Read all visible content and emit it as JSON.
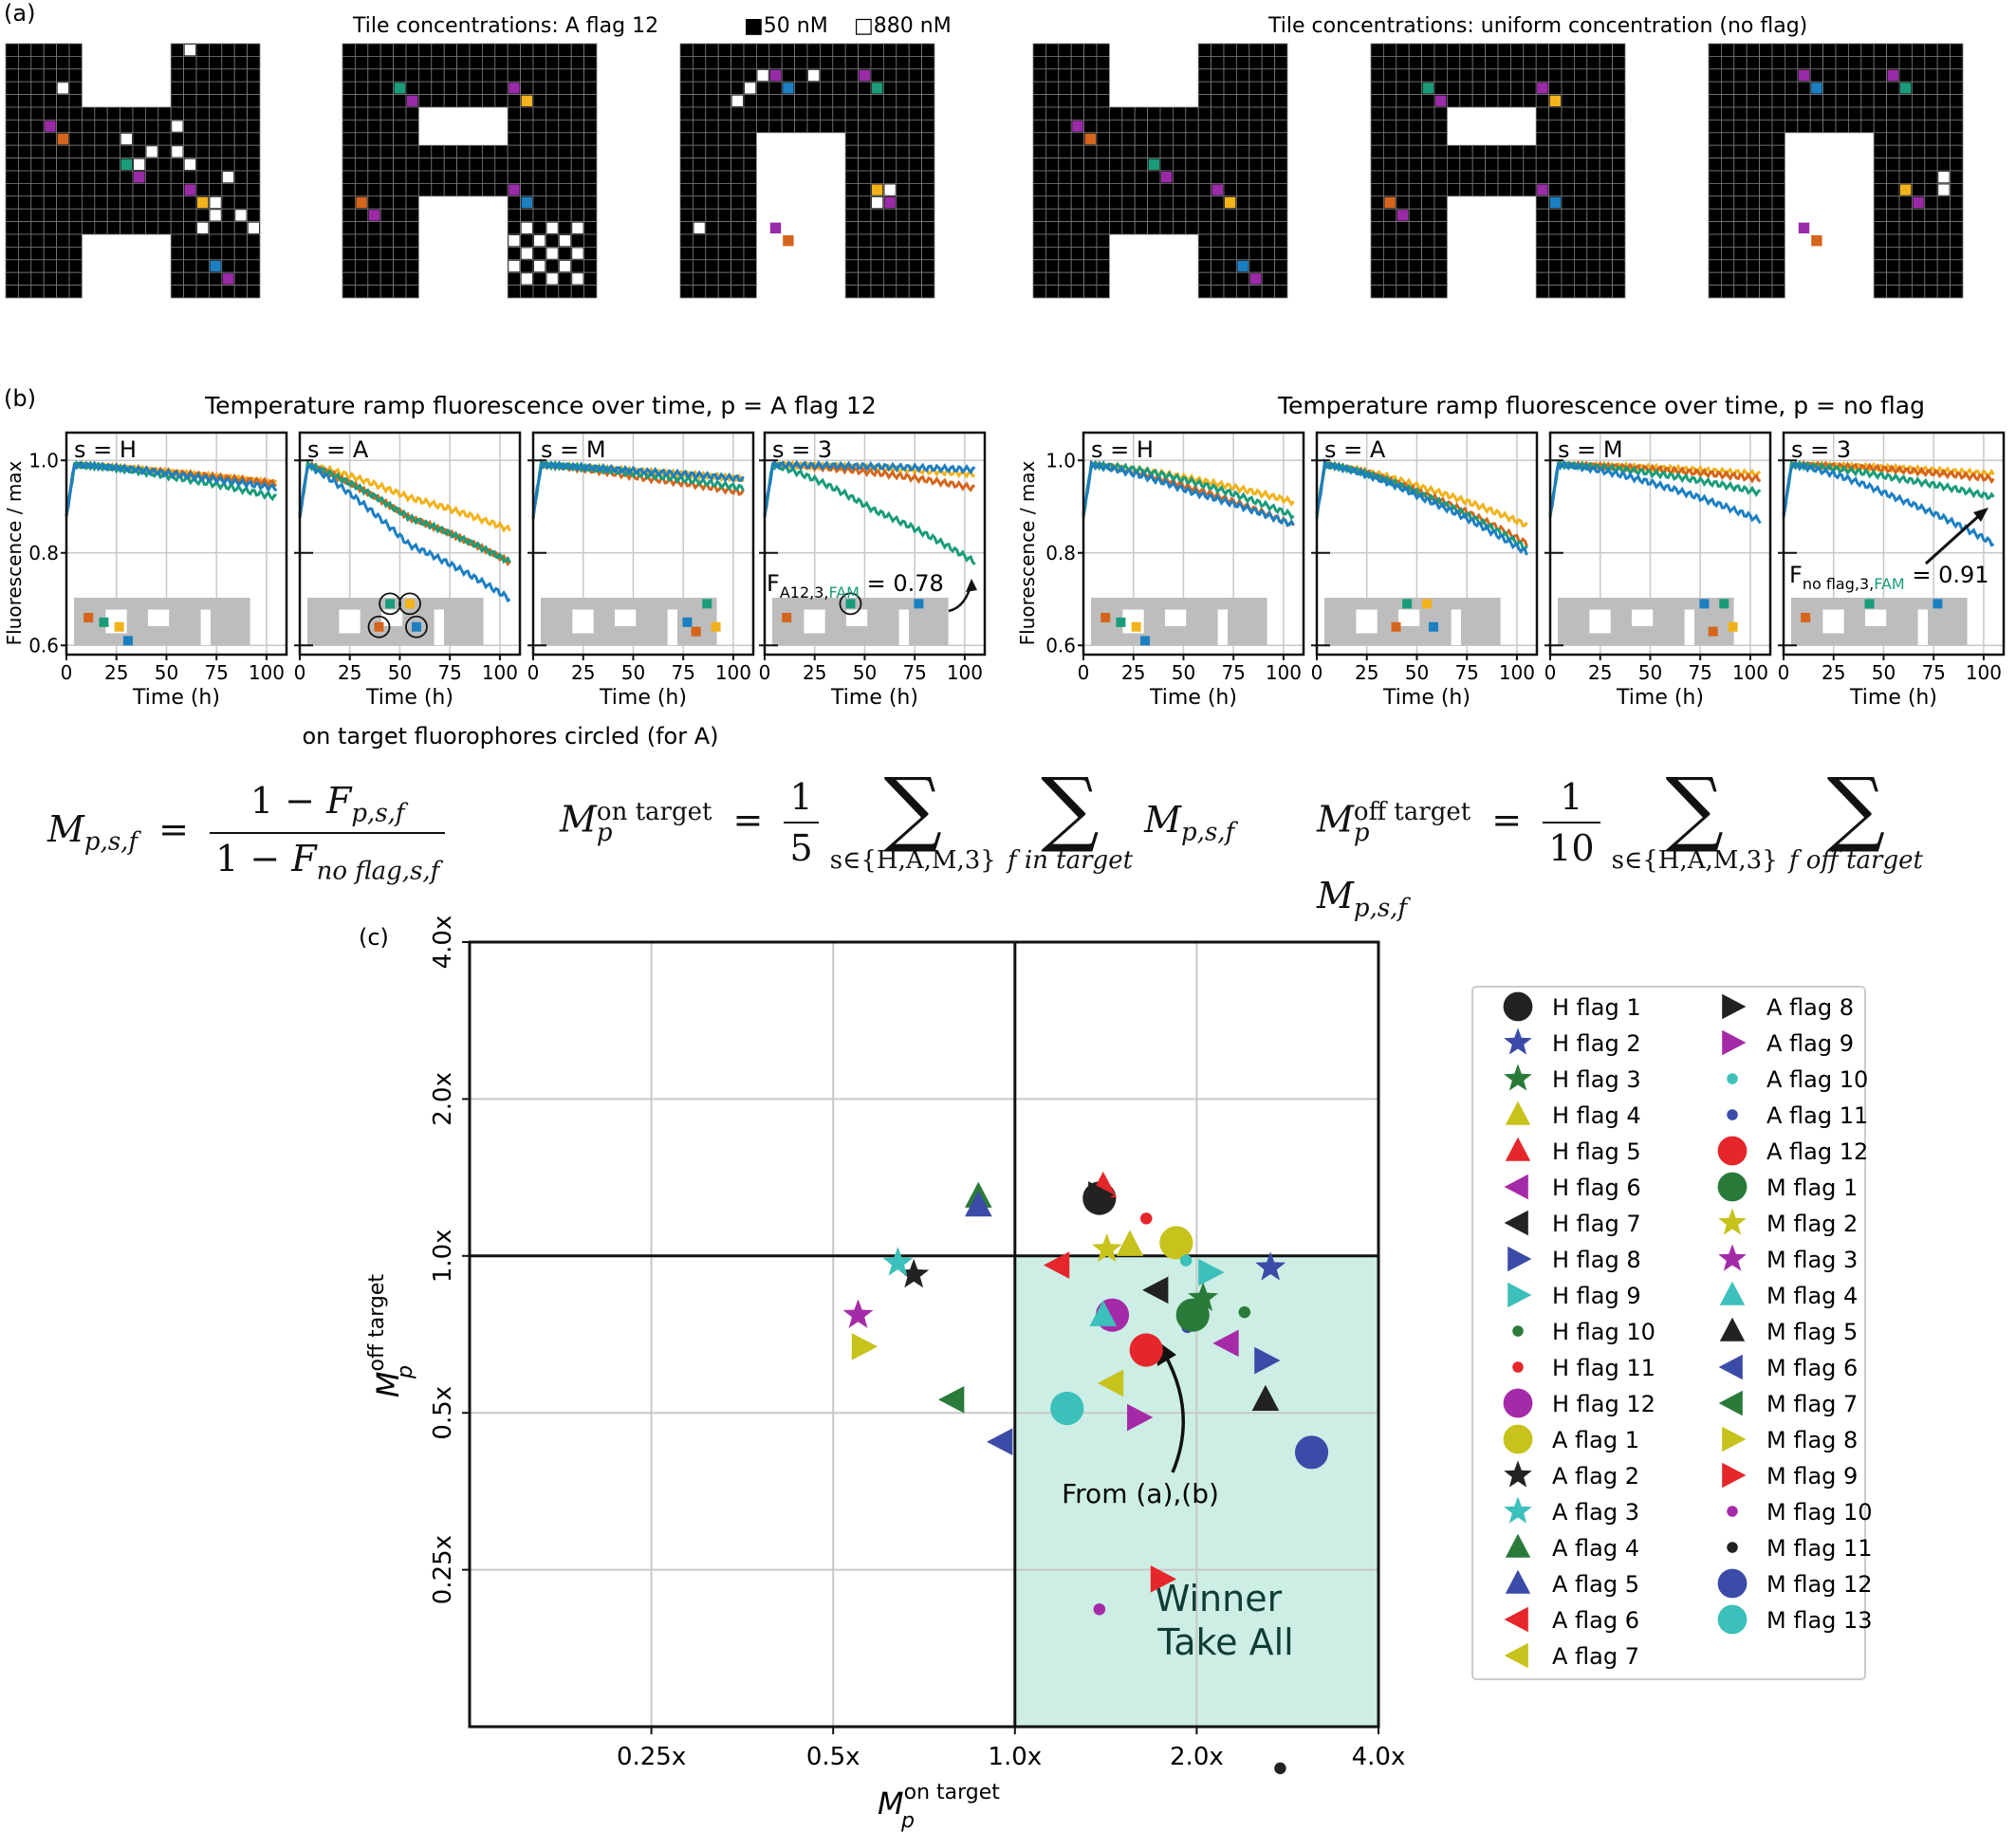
{
  "panel_labels": {
    "a": "(a)",
    "b": "(b)",
    "c": "(c)"
  },
  "panel_a": {
    "left_title": "Tile concentrations: A flag 12",
    "legend_50": "■50 nM",
    "legend_880": "□880 nM",
    "right_title": "Tile concentrations: uniform concentration (no flag)",
    "colors": {
      "orange": "#d5651c",
      "green": "#1a9c7a",
      "purple": "#9a2aa8",
      "yellow": "#f2b21c",
      "blue": "#1c7fc2",
      "white": "#ffffff",
      "black": "#000000",
      "grid": "#7a7a7a"
    }
  },
  "panel_b": {
    "left_title": "Temperature ramp fluorescence over time, p = A flag 12",
    "right_title": "Temperature ramp fluorescence over time, p = no flag",
    "ylabel": "Fluorescence / max",
    "xlabel": "Time (h)",
    "caption": "on target fluorophores circled (for A)",
    "subplot_labels": [
      "s = H",
      "s = A",
      "s = M",
      "s = 3"
    ],
    "xticks": [
      "0",
      "25",
      "50",
      "75",
      "100"
    ],
    "yticks": [
      "0.6",
      "0.8",
      "1.0"
    ],
    "annot_left_main": "F",
    "annot_left_sub1": "A12,3,",
    "annot_left_sub2": "FAM",
    "annot_left_val": " = 0.78",
    "annot_right_main": "F",
    "annot_right_sub1": "no flag,3,",
    "annot_right_sub2": "FAM",
    "annot_right_val": " = 0.91",
    "series_colors": [
      "#f2b21c",
      "#d5651c",
      "#1a9c7a",
      "#1c7fc2"
    ]
  },
  "equations": {
    "m_lhs": "M",
    "m_lhs_sub": "p,s,f",
    "one_minus": "1 − ",
    "F": "F",
    "f_sub_num": "p,s,f",
    "f_sub_den": "no flag,s,f",
    "on_sup": "on target",
    "off_sup": "off target",
    "p_sub": "p",
    "one": "1",
    "five": "5",
    "ten": "10",
    "sum_sub1": "s∈{H,A,M,3}",
    "sum_sub2_on": "f in target",
    "sum_sub2_off": "f off target",
    "eq": "=",
    "msf": "M",
    "msf_sub": "p,s,f"
  },
  "chart_data": {
    "type": "scatter",
    "xlabel_main": "M",
    "xlabel_sup": "on target",
    "xlabel_sub": "p",
    "ylabel_main": "M",
    "ylabel_sup": "off target",
    "ylabel_sub": "p",
    "xscale": "log2",
    "yscale": "log2",
    "xlim": [
      0.125,
      4.0
    ],
    "ylim": [
      0.125,
      4.0
    ],
    "xticks": [
      0.25,
      0.5,
      1.0,
      2.0,
      4.0
    ],
    "xtick_labels": [
      "0.25x",
      "0.5x",
      "1.0x",
      "2.0x",
      "4.0x"
    ],
    "yticks": [
      0.25,
      0.5,
      1.0,
      2.0,
      4.0
    ],
    "ytick_labels": [
      "0.25x",
      "0.5x",
      "1.0x",
      "2.0x",
      "4.0x"
    ],
    "grid": true,
    "region_label_1": "Winner",
    "region_label_2": "Take All",
    "region_color": "#cdeee5",
    "arrow_label": "From (a),(b)",
    "legend_position": "right",
    "series": [
      {
        "name": "H flag 1",
        "marker": "circle",
        "color": "#222222",
        "x": 1.38,
        "y": 1.29
      },
      {
        "name": "H flag 2",
        "marker": "star",
        "color": "#3b4ba8",
        "x": 2.65,
        "y": 0.95
      },
      {
        "name": "H flag 3",
        "marker": "star",
        "color": "#2a7a3a",
        "x": 2.05,
        "y": 0.83
      },
      {
        "name": "H flag 4",
        "marker": "triangle-up",
        "color": "#c7c21c",
        "x": 1.55,
        "y": 1.05
      },
      {
        "name": "H flag 5",
        "marker": "triangle-up",
        "color": "#e5262a",
        "x": 1.4,
        "y": 1.36
      },
      {
        "name": "H flag 6",
        "marker": "triangle-left",
        "color": "#a52aa8",
        "x": 2.25,
        "y": 0.68
      },
      {
        "name": "H flag 7",
        "marker": "triangle-left",
        "color": "#222222",
        "x": 1.72,
        "y": 0.86
      },
      {
        "name": "H flag 8",
        "marker": "triangle-right",
        "color": "#3b4ba8",
        "x": 2.6,
        "y": 0.63
      },
      {
        "name": "H flag 9",
        "marker": "triangle-right",
        "color": "#3cc0bc",
        "x": 2.1,
        "y": 0.93
      },
      {
        "name": "H flag 10",
        "marker": "dot",
        "color": "#2a7a3a",
        "x": 2.4,
        "y": 0.78
      },
      {
        "name": "H flag 11",
        "marker": "dot",
        "color": "#e5262a",
        "x": 1.65,
        "y": 1.18
      },
      {
        "name": "H flag 12",
        "marker": "circle",
        "color": "#a52aa8",
        "x": 1.45,
        "y": 0.77
      },
      {
        "name": "A flag 1",
        "marker": "circle",
        "color": "#c7c21c",
        "x": 1.85,
        "y": 1.06
      },
      {
        "name": "A flag 2",
        "marker": "star",
        "color": "#222222",
        "x": 0.68,
        "y": 0.92
      },
      {
        "name": "A flag 3",
        "marker": "star",
        "color": "#3cc0bc",
        "x": 0.64,
        "y": 0.97
      },
      {
        "name": "A flag 4",
        "marker": "triangle-up",
        "color": "#2a7a3a",
        "x": 0.87,
        "y": 1.3
      },
      {
        "name": "A flag 5",
        "marker": "triangle-up",
        "color": "#3b4ba8",
        "x": 0.87,
        "y": 1.25
      },
      {
        "name": "A flag 6",
        "marker": "triangle-left",
        "color": "#e5262a",
        "x": 1.18,
        "y": 0.96
      },
      {
        "name": "A flag 7",
        "marker": "triangle-left",
        "color": "#c7c21c",
        "x": 1.45,
        "y": 0.57
      },
      {
        "name": "A flag 8",
        "marker": "triangle-right",
        "color": "#222222",
        "x": 1.38,
        "y": 1.31
      },
      {
        "name": "A flag 9",
        "marker": "triangle-right",
        "color": "#a52aa8",
        "x": 1.6,
        "y": 0.49
      },
      {
        "name": "A flag 10",
        "marker": "dot",
        "color": "#3cc0bc",
        "x": 1.92,
        "y": 0.98
      },
      {
        "name": "A flag 11",
        "marker": "dot",
        "color": "#3b4ba8",
        "x": 1.93,
        "y": 0.73
      },
      {
        "name": "A flag 12",
        "marker": "circle",
        "color": "#e5262a",
        "x": 1.65,
        "y": 0.66
      },
      {
        "name": "M flag 1",
        "marker": "circle",
        "color": "#2a7a3a",
        "x": 1.97,
        "y": 0.77
      },
      {
        "name": "M flag 2",
        "marker": "star",
        "color": "#c7c21c",
        "x": 1.42,
        "y": 1.03
      },
      {
        "name": "M flag 3",
        "marker": "star",
        "color": "#a52aa8",
        "x": 0.55,
        "y": 0.77
      },
      {
        "name": "M flag 4",
        "marker": "triangle-up",
        "color": "#3cc0bc",
        "x": 1.4,
        "y": 0.77
      },
      {
        "name": "M flag 5",
        "marker": "triangle-up",
        "color": "#222222",
        "x": 2.6,
        "y": 0.53
      },
      {
        "name": "M flag 6",
        "marker": "triangle-left",
        "color": "#3b4ba8",
        "x": 0.95,
        "y": 0.44
      },
      {
        "name": "M flag 7",
        "marker": "triangle-left",
        "color": "#2a7a3a",
        "x": 0.79,
        "y": 0.53
      },
      {
        "name": "M flag 8",
        "marker": "triangle-right",
        "color": "#c7c21c",
        "x": 0.56,
        "y": 0.67
      },
      {
        "name": "M flag 9",
        "marker": "triangle-right",
        "color": "#e5262a",
        "x": 1.75,
        "y": 0.24
      },
      {
        "name": "M flag 10",
        "marker": "dot",
        "color": "#a52aa8",
        "x": 1.38,
        "y": 0.21
      },
      {
        "name": "M flag 11",
        "marker": "dot",
        "color": "#222222",
        "x": 2.75,
        "y": 0.104
      },
      {
        "name": "M flag 12",
        "marker": "circle",
        "color": "#3b4ba8",
        "x": 3.1,
        "y": 0.42
      },
      {
        "name": "M flag 13",
        "marker": "circle",
        "color": "#3cc0bc",
        "x": 1.22,
        "y": 0.51
      }
    ]
  }
}
